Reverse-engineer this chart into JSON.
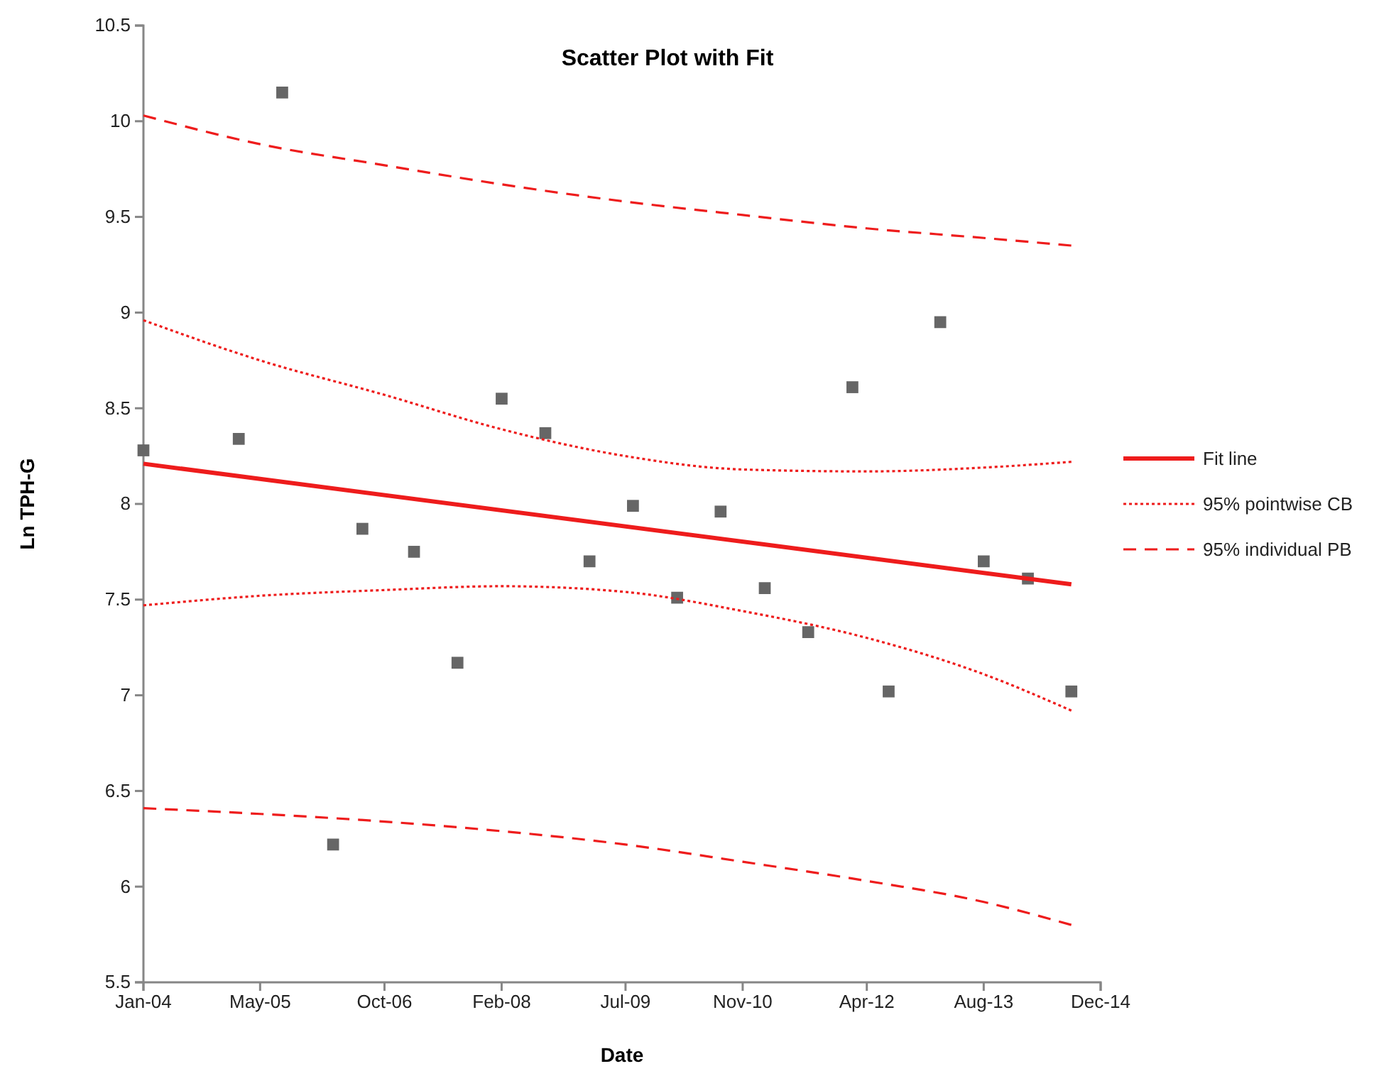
{
  "chart_data": {
    "type": "scatter",
    "title": "Scatter Plot with Fit",
    "xlabel": "Date",
    "ylabel": "Ln TPH-G",
    "legend": "right",
    "grid": false,
    "xlim": [
      "2004-01",
      "2014-12"
    ],
    "xticks": [
      {
        "value": "2004-01",
        "label": "Jan-04"
      },
      {
        "value": "2005-05",
        "label": "May-05"
      },
      {
        "value": "2006-10",
        "label": "Oct-06"
      },
      {
        "value": "2008-02",
        "label": "Feb-08"
      },
      {
        "value": "2009-07",
        "label": "Jul-09"
      },
      {
        "value": "2010-11",
        "label": "Nov-10"
      },
      {
        "value": "2012-04",
        "label": "Apr-12"
      },
      {
        "value": "2013-08",
        "label": "Aug-13"
      },
      {
        "value": "2014-12",
        "label": "Dec-14"
      }
    ],
    "ylim": [
      5.5,
      10.5
    ],
    "yticks": [
      5.5,
      6,
      6.5,
      7,
      7.5,
      8,
      8.5,
      9,
      9.5,
      10,
      10.5
    ],
    "series": [
      {
        "type": "scatter",
        "marker": "square",
        "color": "#666666",
        "x": [
          "2004-01",
          "2005-02",
          "2005-08",
          "2006-03",
          "2006-07",
          "2007-02",
          "2007-08",
          "2008-02",
          "2008-08",
          "2009-02",
          "2009-08",
          "2010-02",
          "2010-08",
          "2011-02",
          "2011-08",
          "2012-02",
          "2012-07",
          "2013-02",
          "2013-08",
          "2014-02",
          "2014-08"
        ],
        "values": [
          8.28,
          8.34,
          10.15,
          6.22,
          7.87,
          7.75,
          7.17,
          8.55,
          8.37,
          7.7,
          7.99,
          7.51,
          7.96,
          7.56,
          7.33,
          8.61,
          7.02,
          8.95,
          7.7,
          7.61,
          7.02
        ]
      },
      {
        "type": "line",
        "name": "Fit line",
        "marker": "none",
        "line_style": "solid",
        "color": "#ee1c1c",
        "x": [
          "2004-01",
          "2014-08"
        ],
        "values": [
          8.21,
          7.58
        ]
      },
      {
        "type": "line",
        "name": "95% pointwise CB",
        "marker": "none",
        "line_style": "dotted",
        "color": "#ee1c1c",
        "x": [
          "2004-01",
          "2005-05",
          "2006-10",
          "2008-02",
          "2009-07",
          "2010-11",
          "2012-04",
          "2013-08",
          "2014-08"
        ],
        "values": [
          8.96,
          8.75,
          8.57,
          8.39,
          8.25,
          8.18,
          8.17,
          8.19,
          8.22
        ]
      },
      {
        "type": "line",
        "marker": "none",
        "line_style": "dotted",
        "color": "#ee1c1c",
        "x": [
          "2004-01",
          "2005-05",
          "2006-10",
          "2008-02",
          "2009-07",
          "2010-11",
          "2012-04",
          "2013-08",
          "2014-08"
        ],
        "values": [
          7.47,
          7.52,
          7.55,
          7.57,
          7.54,
          7.44,
          7.3,
          7.11,
          6.92
        ]
      },
      {
        "type": "line",
        "name": "95% individual PB",
        "marker": "none",
        "line_style": "dashed",
        "color": "#ee1c1c",
        "x": [
          "2004-01",
          "2005-05",
          "2006-10",
          "2008-02",
          "2009-07",
          "2010-11",
          "2012-04",
          "2013-08",
          "2014-08"
        ],
        "values": [
          10.03,
          9.88,
          9.77,
          9.67,
          9.58,
          9.51,
          9.44,
          9.39,
          9.35
        ]
      },
      {
        "type": "line",
        "marker": "none",
        "line_style": "dashed",
        "color": "#ee1c1c",
        "x": [
          "2004-01",
          "2005-05",
          "2006-10",
          "2008-02",
          "2009-07",
          "2010-11",
          "2012-04",
          "2013-08",
          "2014-08"
        ],
        "values": [
          6.41,
          6.38,
          6.34,
          6.29,
          6.22,
          6.13,
          6.03,
          5.92,
          5.8
        ]
      }
    ]
  }
}
